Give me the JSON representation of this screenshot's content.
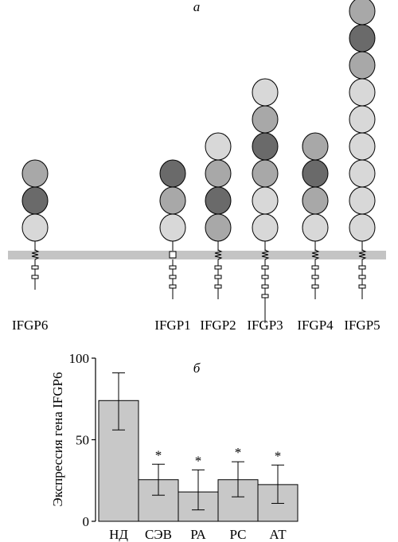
{
  "panel_a": {
    "label": "а",
    "proteins": [
      {
        "name": "IFGP6",
        "domains": [
          "mid",
          "dark",
          "light"
        ],
        "stem": [
          1,
          1
        ]
      },
      {
        "name": "IFGP1",
        "domains": [
          "dark",
          "mid",
          "light"
        ],
        "stem": [
          1,
          1,
          1
        ]
      },
      {
        "name": "IFGP2",
        "domains": [
          "light",
          "mid",
          "dark",
          "mid"
        ],
        "stem": [
          1,
          1,
          1
        ]
      },
      {
        "name": "IFGP3",
        "domains": [
          "light",
          "mid",
          "dark",
          "mid",
          "light",
          "light"
        ],
        "stem": [
          1,
          1,
          1,
          1
        ]
      },
      {
        "name": "IFGP4",
        "domains": [
          "mid",
          "dark",
          "mid",
          "light"
        ],
        "stem": [
          1,
          1,
          1
        ]
      },
      {
        "name": "IFGP5",
        "domains": [
          "light",
          "mid",
          "dark",
          "mid",
          "light",
          "light",
          "light",
          "light",
          "light",
          "light"
        ],
        "stem": [
          1,
          1,
          1
        ]
      }
    ],
    "colors": {
      "light": "#d8d8d8",
      "mid": "#a8a8a8",
      "dark": "#6a6a6a",
      "membrane": "#c4c4c4"
    }
  },
  "chart_data": {
    "type": "bar",
    "panel_label": "б",
    "categories": [
      "НД",
      "СЭВ",
      "РА",
      "РС",
      "АТ"
    ],
    "values": [
      74,
      25.5,
      18,
      25.5,
      22.5
    ],
    "error_low": [
      56,
      16,
      7,
      15,
      11
    ],
    "error_high": [
      91,
      35,
      31.5,
      36.5,
      34.5
    ],
    "significance": [
      "",
      "*",
      "*",
      "*",
      "*"
    ],
    "ylabel": "Экспрессия гена IFGP6",
    "ylim": [
      0,
      100
    ],
    "yticks": [
      0,
      50,
      100
    ],
    "bar_color": "#c8c8c8",
    "grid": false
  }
}
